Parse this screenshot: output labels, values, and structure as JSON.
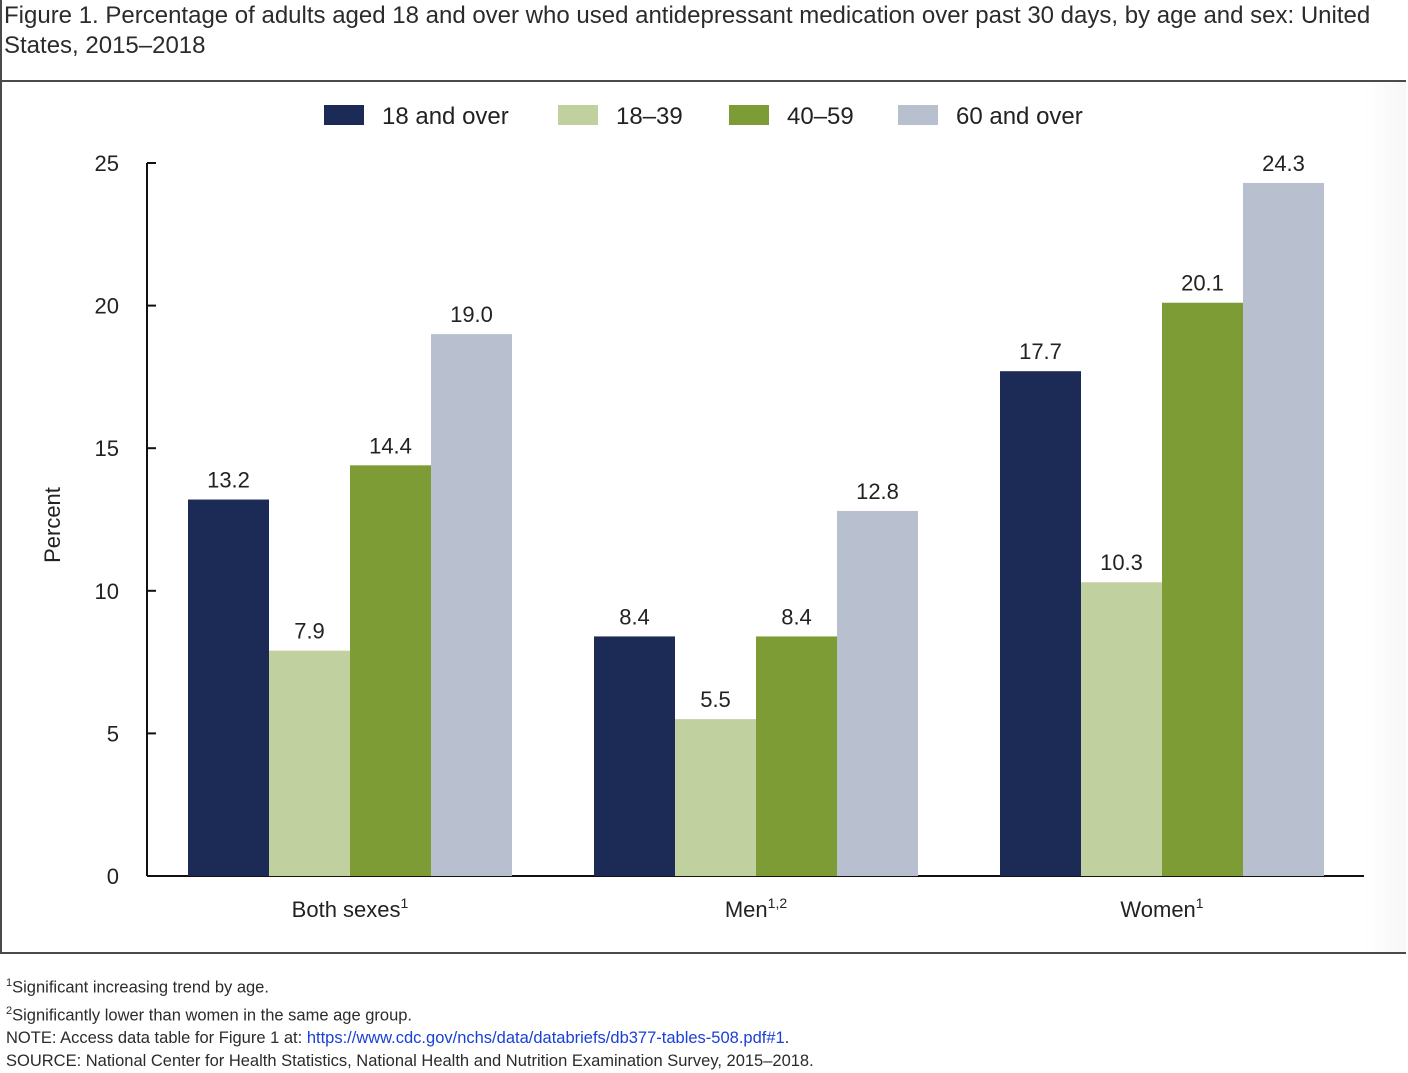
{
  "title": "Figure 1. Percentage of adults aged 18 and over who used antidepressant medication over past 30 days, by age and sex: United States, 2015–2018",
  "chart_data": {
    "type": "bar",
    "ylabel": "Percent",
    "ylim": [
      0,
      25
    ],
    "yticks": [
      0,
      5,
      10,
      15,
      20,
      25
    ],
    "categories": [
      {
        "label": "Both sexes",
        "sup": "1"
      },
      {
        "label": "Men",
        "sup": "1,2"
      },
      {
        "label": "Women",
        "sup": "1"
      }
    ],
    "series": [
      {
        "name": "18 and over",
        "color": "#1b2b55",
        "values": [
          13.2,
          8.4,
          17.7
        ]
      },
      {
        "name": "18–39",
        "color": "#c0d09e",
        "values": [
          7.9,
          5.5,
          10.3
        ]
      },
      {
        "name": "40–59",
        "color": "#7e9c36",
        "values": [
          14.4,
          8.4,
          20.1
        ]
      },
      {
        "name": "60 and over",
        "color": "#b8c0cf",
        "values": [
          19.0,
          12.8,
          24.3
        ]
      }
    ],
    "legend_position": "top-center"
  },
  "footnotes": {
    "note1_sup": "1",
    "note1": "Significant increasing trend by age.",
    "note2_sup": "2",
    "note2": "Significantly lower than women in the same age group.",
    "note_prefix": "NOTE: Access data table for Figure 1 at: ",
    "note_link": "https://www.cdc.gov/nchs/data/databriefs/db377-tables-508.pdf#1",
    "note_suffix": ".",
    "source": "SOURCE: National Center for Health Statistics, National Health and Nutrition Examination Survey, 2015–2018."
  }
}
